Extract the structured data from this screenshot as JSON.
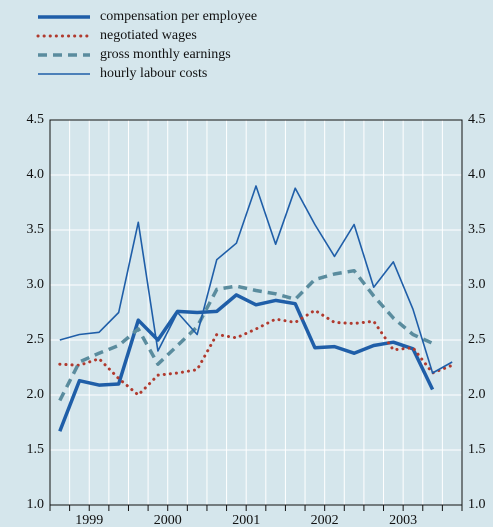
{
  "chart_data": {
    "type": "line",
    "categories": [
      null,
      null,
      null,
      null,
      null,
      null,
      null,
      null,
      null,
      null,
      null,
      null,
      null,
      null,
      null,
      null,
      null,
      null,
      null,
      null,
      null
    ],
    "year_labels": [
      "1999",
      "2000",
      "2001",
      "2002",
      "2003"
    ],
    "series": [
      {
        "name": "compensation per employee",
        "color": "#1f5ea8",
        "style": "thick",
        "values": [
          1.67,
          2.13,
          2.09,
          2.1,
          2.68,
          2.5,
          2.76,
          2.75,
          2.76,
          2.91,
          2.82,
          2.86,
          2.83,
          2.43,
          2.44,
          2.38,
          2.45,
          2.48,
          2.42,
          2.05,
          null
        ]
      },
      {
        "name": "negotiated wages",
        "color": "#b03a2e",
        "style": "dotted",
        "values": [
          2.28,
          2.27,
          2.33,
          2.15,
          2.0,
          2.18,
          2.2,
          2.23,
          2.55,
          2.52,
          2.6,
          2.69,
          2.66,
          2.77,
          2.66,
          2.65,
          2.67,
          2.41,
          2.43,
          2.2,
          2.27
        ]
      },
      {
        "name": "gross monthly earnings",
        "color": "#5a8c9e",
        "style": "dashed",
        "values": [
          1.95,
          2.3,
          2.38,
          2.45,
          2.6,
          2.28,
          2.45,
          2.62,
          2.96,
          2.99,
          2.95,
          2.92,
          2.87,
          3.05,
          3.1,
          3.13,
          2.9,
          2.7,
          2.55,
          2.47,
          null
        ]
      },
      {
        "name": "hourly labour costs",
        "color": "#1f5ea8",
        "style": "thin",
        "values": [
          2.5,
          2.55,
          2.57,
          2.75,
          3.57,
          2.4,
          2.75,
          2.55,
          3.23,
          3.38,
          3.9,
          3.37,
          3.88,
          3.55,
          3.26,
          3.55,
          2.98,
          3.21,
          2.78,
          2.2,
          2.3
        ]
      }
    ],
    "ylim": [
      1.0,
      4.5
    ],
    "yticks": [
      {
        "value": 1.0,
        "label": "1.0"
      },
      {
        "value": 1.5,
        "label": "1.5"
      },
      {
        "value": 2.0,
        "label": "2.0"
      },
      {
        "value": 2.5,
        "label": "2.5"
      },
      {
        "value": 3.0,
        "label": "3.0"
      },
      {
        "value": 3.5,
        "label": "3.5"
      },
      {
        "value": 4.0,
        "label": "4.0"
      },
      {
        "value": 4.5,
        "label": "4.5"
      }
    ],
    "grid": true
  }
}
